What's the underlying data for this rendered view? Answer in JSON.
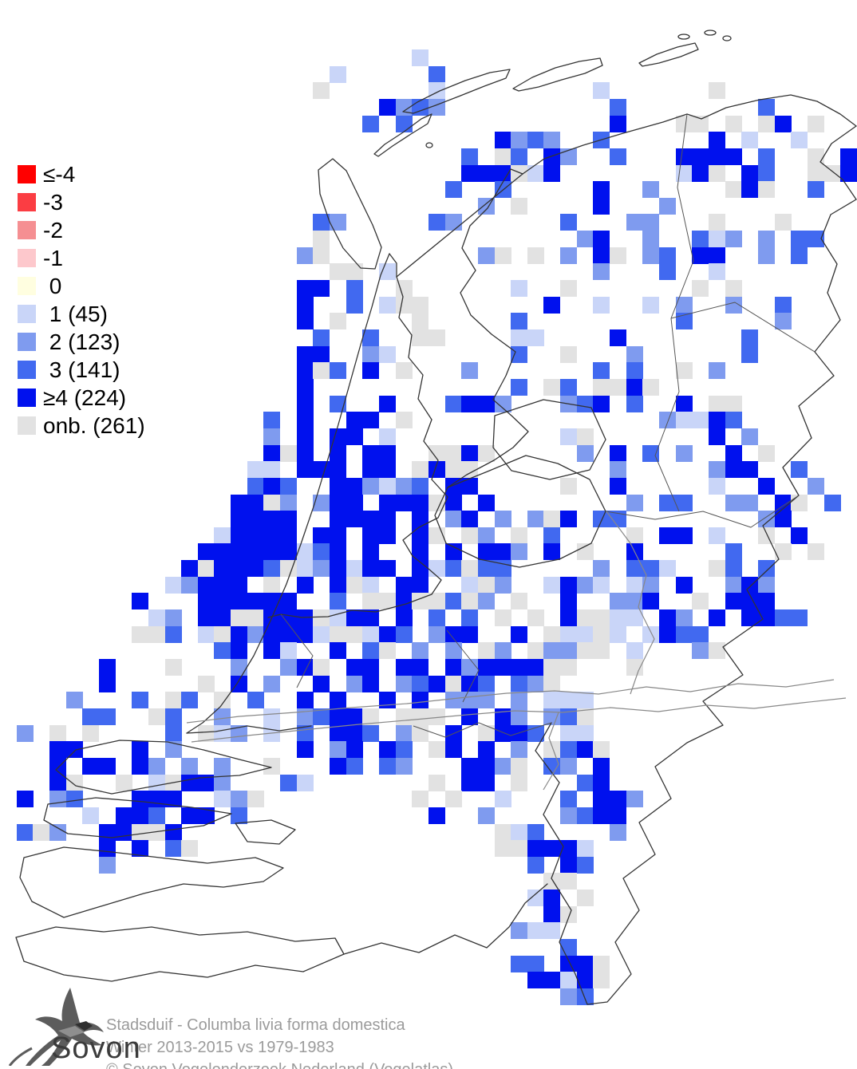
{
  "legend": {
    "items": [
      {
        "code": "le-4",
        "label": "≤-4",
        "color": "#ff0000"
      },
      {
        "code": "-3",
        "label": "-3",
        "color": "#fb3d43"
      },
      {
        "code": "-2",
        "label": "-2",
        "color": "#f58f92"
      },
      {
        "code": "-1",
        "label": "-1",
        "color": "#fdc8cc"
      },
      {
        "code": "0",
        "label": " 0",
        "color": "#fffee0"
      },
      {
        "code": "1",
        "label": " 1 (45)",
        "color": "#c9d5f8"
      },
      {
        "code": "2",
        "label": " 2 (123)",
        "color": "#7f9bef"
      },
      {
        "code": "3",
        "label": " 3 (141)",
        "color": "#4169f0"
      },
      {
        "code": "4",
        "label": "≥4 (224)",
        "color": "#0011ee"
      },
      {
        "code": "onb",
        "label": "onb. (261)",
        "color": "#e2e2e2"
      }
    ]
  },
  "caption": {
    "species": "Stadsduif - Columba livia forma domestica",
    "period": "Winter 2013-2015 vs 1979-1983",
    "copyright": "© Sovon Vogelonderzoek Nederland (Vogelatlas)"
  },
  "logo": {
    "text": "Sovon"
  },
  "map": {
    "palette": {
      "1": "#c9d5f8",
      "2": "#7f9bef",
      "3": "#4169f0",
      "4": "#0011ee",
      "o": "#e2e2e2"
    },
    "grid": {
      "cols": 52,
      "rows": 61,
      "pitch": 20.65
    },
    "rows": [
      "....................................................",
      "....................................................",
      "....................................................",
      ".........................1..........................",
      "....................1.....3.........................",
      "...................o......1.........1......o........",
      ".......................4232..........3........3.....",
      "......................3.3............4...oo.o.o4.o..",
      "..............................4232..3......4.1..1...",
      "............................3.o3.42..3...4444.3..o.4",
      "............................444o14.......14o.43..oo4",
      "...........................3..3.....4..2....o4o..3..",
      ".............................2.o....4...2...........",
      "...................32.....32......3...22...o...o....",
      "...................o...............24..2..312.2.33..",
      "..................2o.........2o.o.2.4o.23.44..2.3...",
      "....................oo.1............2...3..1........",
      "..................44.3..o......1..o.......o.o.......",
      "..................4..3.1oo.......4..1..1.2..2..3....",
      "..................4.o....o.....3.........3.....2....",
      "...................3..3..oo....11....4.......3......",
      "..................44..21.......3..o...2......3......",
      "..................4o3.4.o...2.......3.3..o.2........",
      "..................4............3.o3.oo4o............",
      "..................4.3..4...3442...234.3..4.oo.......",
      "................3.4..44.o...............21143.......",
      "................2.4.44.1..........1o.......4.2......",
      "................4o4.4.44..oo4o.....2.4.3.2..4.o.....",
      "...............11.444.44.o4oo........2.....244..3...",
      "...............343..442123.44.....o..4.....1..4..2..",
      "..............44o2.244.444o4.4........2.33..22.4o.3.",
      "..............4444..4444.4.24.2.2o4.33........24....",
      ".............14444.44.44.4o.o2.o.3....o.44.1..o.4...",
      "............444444134.4..4.4.442.4.o..4.....3..o.o..",
      "...........4o4443o124144.413o33.....2.331..o3.3.....",
      "..........12444.o.4.4o1.44..1o2..1421.12.4..242.....",
      "........4...444444..3.oo4oo3o2.o..4..224..o.444.....",
      ".........12.44oo444o144.4.3.3.o.o.4oo11.42.4.4433...",
      "........oo3.1o424441oo143.244..4.o11o1.1433.........",
      ".............34.41..4.3o.2.2.o2.o22oo.1...2o........",
      "......4...o...2..24o.44.44.424444oo...o.............",
      "......4.....o.4.2..4.24.234o43.32o..................",
      "....2...3.o3.o.3..4.4..4.4.222.2.111................",
      ".....33..o3..2..1.2344o.ooo.4.42.23o................",
      ".2.o.o....3.o12.1.3.443.2o.4.o443.11................",
      "...44...4.2.......4.24.43.o4.4.2.o34o...............",
      "...4.44.42.2.2..o...43.32...442o.32.4...............",
      "...4o..o.1o442...31.......o.44.o...34...............",
      ".4.23...444..12o.........o.o..1...3.442.............",
      ".....1.443.44.3...........4..2....2344..............",
      ".3o2..44oo4...................o13....2..............",
      "......4.4.3o..................oo4441................",
      "......2.........................3.43................",
      ".................................oo.................",
      "................................14.o................",
      ".................................4o.................",
      "...............................211..................",
      "..................................3.................",
      "...............................33.44o...............",
      "................................4414o...............",
      "..................................23................"
    ]
  }
}
